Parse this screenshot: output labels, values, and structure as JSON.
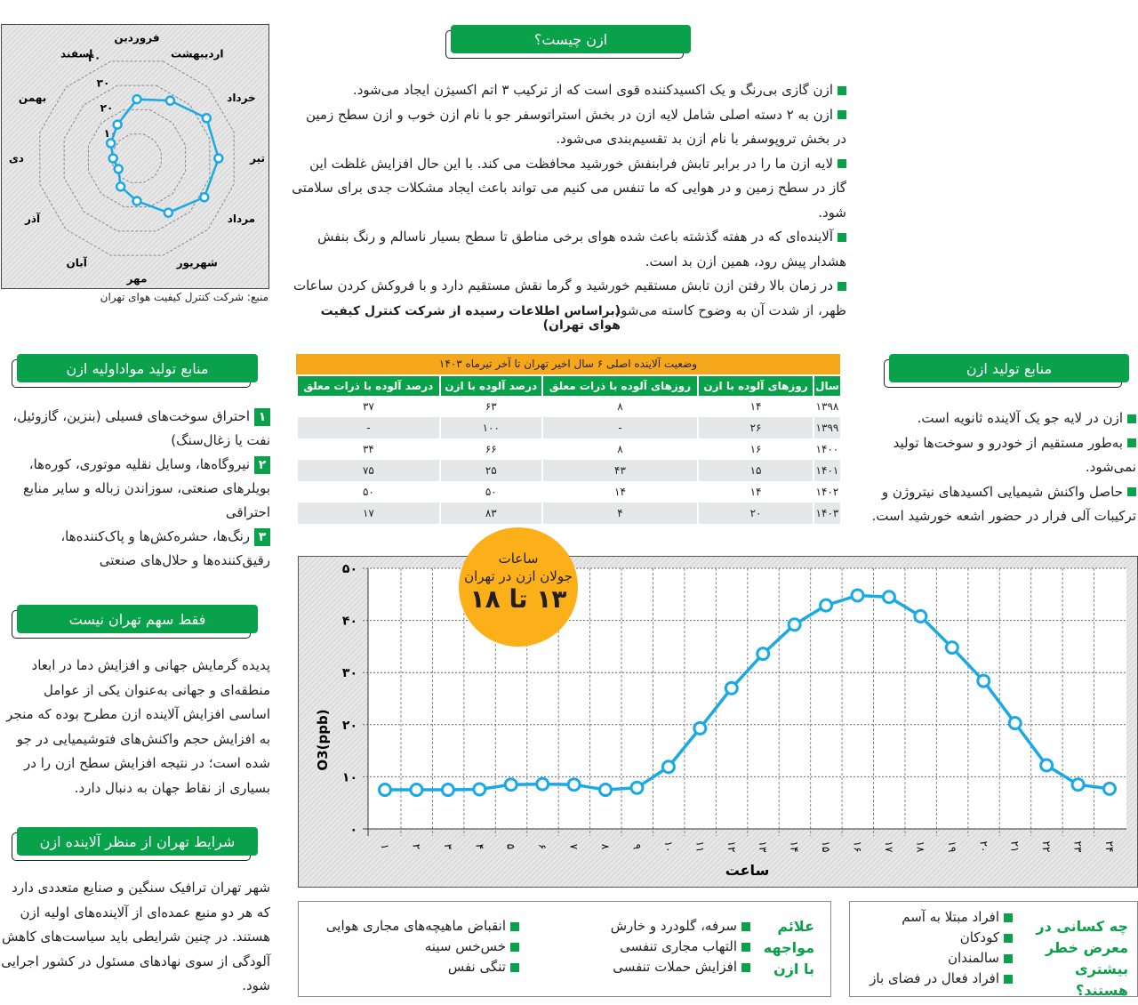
{
  "what_is": {
    "title": "ازن چیست؟",
    "items": [
      "ازن گازی بی‌رنگ و یک اکسیدکننده قوی است که از ترکیب ۳ اتم اکسیژن ایجاد می‌شود.",
      "ازن به ۲ دسته اصلی شامل لایه ازن در بخش استراتوسفر جو با نام ازن خوب و ازن سطح زمین در بخش تروپوسفر با نام ازن بد تقسیم‌بندی می‌شود.",
      "لایه ازن ما را در برابر تابش فرابنفش خورشید محافظت می کند. با این حال افزایش غلظت این گاز در سطح زمین و در هوایی که ما تنفس می کنیم می تواند باعث ایجاد مشکلات جدی برای سلامتی شود.",
      "آلاینده‌ای که در هفته گذشته باعث شده هوای برخی مناطق تا سطح بسیار ناسالم و رنگ بنفش هشدار پیش رود، همین ازن بد است.",
      "در زمان بالا رفتن ازن تابش مستقیم خورشید و گرما نقش مستقیم دارد و با فروکش کردن ساعات ظهر، از شدت آن به وضوح کاسته می‌شود."
    ],
    "credit": "(براساس اطلاعات رسیده از شرکت کنترل کیفیت هوای تهران)"
  },
  "raw_sources": {
    "title": "منابع تولید مواداولیه ازن",
    "items": [
      {
        "num": "۱",
        "text": "احتراق سوخت‌های فسیلی (بنزین، گازوئیل، نفت یا زغال‌سنگ)"
      },
      {
        "num": "۲",
        "text": "نیروگاه‌ها، وسایل نقلیه موتوری، کوره‌ها، بویلرهای صنعتی، سوزاندن زباله و سایر منابع احتراقی"
      },
      {
        "num": "۳",
        "text": "رنگ‌ها، حشره‌کش‌ها و پاک‌کننده‌ها، رقیق‌کننده‌ها و حلال‌های صنعتی"
      }
    ]
  },
  "not_only_tehran": {
    "title": "فقط سهم تهران نیست",
    "text": "پدیده گرمایش جهانی و افزایش دما در ابعاد منطقه‌ای و جهانی به‌عنوان یکی از عوامل اساسی افزایش آلاینده ازن مطرح بوده که منجر به افزایش حجم واکنش‌های فتوشیمیایی در جو شده است؛ در نتیجه افزایش سطح ازن را در بسیاری از نقاط جهان به دنبال دارد."
  },
  "tehran_conditions": {
    "title": "شرایط تهران از منظر آلاینده ازن",
    "text": "شهر تهران ترافیک سنگین و صنایع متعددی دارد که هر دو منبع عمده‌ای از آلاینده‌های اولیه ازن هستند. در چنین شرایطی باید سیاست‌های کاهش آلودگی از سوی نهادهای مسئول در کشور اجرایی شود."
  },
  "ozone_sources": {
    "title": "منابع تولید ازن",
    "items": [
      "ازن در لایه جو یک آلاینده ثانویه است.",
      "به‌طور مستقیم از خودرو و سوخت‌ها تولید نمی‌شود.",
      "حاصل واکنش شیمیایی اکسیدهای نیتروژن و ترکیبات آلی فرار در حضور اشعه خورشید است."
    ]
  },
  "symptoms": {
    "title": "علائم مواجهه با ازن",
    "col1": [
      "سرفه، گلودرد و خارش",
      "التهاب مجاری تنفسی",
      "افزایش حملات تنفسی"
    ],
    "col2": [
      "انقباض ماهیچه‌های مجاری هوایی",
      "خس‌خس سینه",
      "تنگی نفس"
    ]
  },
  "at_risk": {
    "title": "چه کسانی در معرض خطر بیشتری هستند؟",
    "items": [
      "افراد مبتلا به آسم",
      "کودکان",
      "سالمندان",
      "افراد فعال در فضای باز"
    ]
  },
  "badge": {
    "line1": "ساعات",
    "line2": "جولان ازن در تهران",
    "hours": "۱۳ تا ۱۸",
    "color": "#fbb01a"
  },
  "colors": {
    "green": "#0aa14b",
    "orange": "#f5a81c",
    "series": "#19a9e6"
  },
  "chart_data": [
    {
      "type": "radar",
      "source": "منبع: شرکت کنترل کیفیت هوای تهران",
      "categories": [
        "فروردین",
        "اردیبهشت",
        "خرداد",
        "تیر",
        "مرداد",
        "شهریور",
        "مهر",
        "آبان",
        "آذر",
        "دی",
        "بهمن",
        "اسفند"
      ],
      "values": [
        23.5,
        26.5,
        32,
        32.5,
        31,
        25,
        17,
        13,
        8.5,
        9.5,
        12,
        15.5
      ],
      "ticks": [
        "۱۰",
        "۲۰",
        "۳۰",
        "۴۰"
      ],
      "rmax": 40,
      "grid": true
    },
    {
      "type": "line",
      "ylabel": "O3(ppb)",
      "xlabel": "ساعت",
      "ylim": [
        0,
        50
      ],
      "yticks": [
        "۰",
        "۱۰",
        "۲۰",
        "۳۰",
        "۴۰",
        "۵۰"
      ],
      "xticks": [
        "۱",
        "۲",
        "۳",
        "۴",
        "۵",
        "۶",
        "۷",
        "۸",
        "۹",
        "۱۰",
        "۱۱",
        "۱۲",
        "۱۳",
        "۱۴",
        "۱۵",
        "۱۶",
        "۱۷",
        "۱۸",
        "۱۹",
        "۲۰",
        "۲۱",
        "۲۲",
        "۲۳",
        "۲۴"
      ],
      "x": [
        1,
        2,
        3,
        4,
        5,
        6,
        7,
        8,
        9,
        10,
        11,
        12,
        13,
        14,
        15,
        16,
        17,
        18,
        19,
        20,
        21,
        22,
        23,
        24
      ],
      "values": [
        7.5,
        7.5,
        7.5,
        7.6,
        8.5,
        8.6,
        8.5,
        7.5,
        7.9,
        11.9,
        19.3,
        27,
        33.6,
        39.2,
        42.9,
        44.8,
        44.5,
        40.8,
        34.8,
        28.4,
        20.3,
        12.2,
        8.5,
        7.7
      ],
      "grid": true
    },
    {
      "type": "table",
      "title": "وضعیت آلاینده اصلی ۶ سال اخیر تهران تا آخر تیرماه ۱۴۰۳",
      "columns": [
        "سال",
        "روزهای آلوده با ازن",
        "روزهای آلوده با ذرات معلق",
        "درصد آلوده با ازن",
        "درصد آلوده با ذرات معلق"
      ],
      "rows": [
        [
          "۱۳۹۸",
          "۱۴",
          "۸",
          "۶۳",
          "۳۷"
        ],
        [
          "۱۳۹۹",
          "۲۶",
          "-",
          "۱۰۰",
          "-"
        ],
        [
          "۱۴۰۰",
          "۱۶",
          "۸",
          "۶۶",
          "۳۴"
        ],
        [
          "۱۴۰۱",
          "۱۵",
          "۴۳",
          "۲۵",
          "۷۵"
        ],
        [
          "۱۴۰۲",
          "۱۴",
          "۱۴",
          "۵۰",
          "۵۰"
        ],
        [
          "۱۴۰۳",
          "۲۰",
          "۴",
          "۸۳",
          "۱۷"
        ]
      ]
    }
  ]
}
